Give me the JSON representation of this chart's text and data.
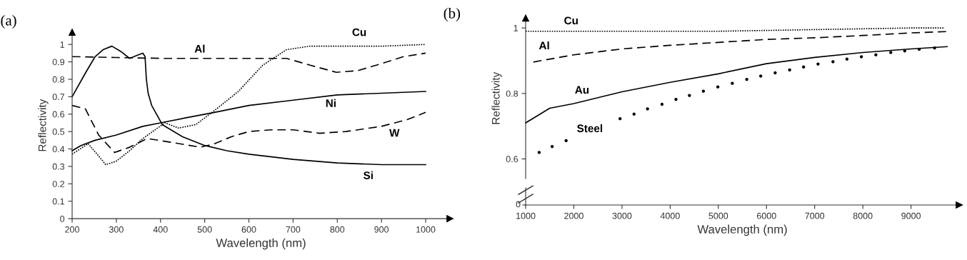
{
  "chart_data": [
    {
      "type": "line",
      "title": "(a)",
      "xlabel": "Wavelength (nm)",
      "ylabel": "Reflectivity",
      "xlim": [
        200,
        1055
      ],
      "ylim": [
        0,
        1.07
      ],
      "xticks": [
        200,
        300,
        400,
        500,
        600,
        700,
        800,
        900,
        1000
      ],
      "yticks": [
        0,
        0.1,
        0.2,
        0.3,
        0.4,
        0.5,
        0.6,
        0.7,
        0.8,
        0.9,
        1
      ],
      "series": [
        {
          "name": "Cu",
          "color": "#000000",
          "line_style": "dotted",
          "x": [
            200,
            236,
            260,
            276,
            300,
            330,
            360,
            410,
            441,
            480,
            522,
            576,
            631,
            685,
            738,
            800,
            900,
            1000
          ],
          "values": [
            0.37,
            0.43,
            0.36,
            0.31,
            0.33,
            0.39,
            0.46,
            0.55,
            0.52,
            0.54,
            0.62,
            0.73,
            0.88,
            0.97,
            0.99,
            0.99,
            0.99,
            1.0
          ]
        },
        {
          "name": "Al",
          "color": "#000000",
          "line_style": "dashed",
          "x": [
            200,
            300,
            400,
            500,
            600,
            685,
            740,
            798,
            847,
            900,
            950,
            1000
          ],
          "values": [
            0.93,
            0.925,
            0.92,
            0.92,
            0.92,
            0.92,
            0.88,
            0.84,
            0.85,
            0.89,
            0.93,
            0.95
          ]
        },
        {
          "name": "Ni",
          "color": "#000000",
          "line_style": "solid",
          "x": [
            200,
            220,
            252,
            300,
            360,
            400,
            460,
            522,
            600,
            700,
            800,
            900,
            1000
          ],
          "values": [
            0.39,
            0.42,
            0.45,
            0.48,
            0.53,
            0.55,
            0.58,
            0.61,
            0.65,
            0.68,
            0.71,
            0.72,
            0.73
          ]
        },
        {
          "name": "W",
          "color": "#000000",
          "line_style": "dashed",
          "x": [
            200,
            230,
            260,
            296,
            330,
            370,
            420,
            490,
            522,
            560,
            600,
            650,
            700,
            730,
            760,
            820,
            900,
            960,
            1000
          ],
          "values": [
            0.65,
            0.63,
            0.48,
            0.38,
            0.41,
            0.46,
            0.44,
            0.41,
            0.43,
            0.47,
            0.5,
            0.51,
            0.51,
            0.5,
            0.49,
            0.5,
            0.53,
            0.57,
            0.61
          ]
        },
        {
          "name": "Si",
          "color": "#000000",
          "line_style": "solid",
          "x": [
            200,
            231,
            252,
            270,
            290,
            310,
            330,
            350,
            360,
            365,
            368,
            372,
            380,
            404,
            450,
            500,
            550,
            600,
            700,
            800,
            900,
            1000
          ],
          "values": [
            0.7,
            0.84,
            0.93,
            0.97,
            0.99,
            0.96,
            0.92,
            0.94,
            0.95,
            0.93,
            0.8,
            0.72,
            0.65,
            0.54,
            0.47,
            0.42,
            0.39,
            0.37,
            0.34,
            0.32,
            0.31,
            0.31
          ]
        }
      ]
    },
    {
      "type": "line",
      "title": "(b)",
      "xlabel": "Wavelength (nm)",
      "ylabel": "Reflectivity",
      "xlim": [
        1000,
        10000
      ],
      "ylim": [
        0.54,
        1.03
      ],
      "xticks": [
        1000,
        2000,
        3000,
        4000,
        5000,
        6000,
        7000,
        8000,
        9000
      ],
      "yticks": [
        0.6,
        0.8,
        1
      ],
      "annotations": [
        "0"
      ],
      "series": [
        {
          "name": "Cu",
          "color": "#000000",
          "line_style": "dotted",
          "x": [
            1000,
            3000,
            5000,
            7000,
            9000,
            9700
          ],
          "values": [
            0.99,
            0.99,
            0.99,
            0.995,
            1.0,
            1.0
          ]
        },
        {
          "name": "Al",
          "color": "#000000",
          "line_style": "dashed",
          "x": [
            1160,
            2000,
            3000,
            4000,
            5000,
            6000,
            7000,
            8000,
            9000,
            9740
          ],
          "values": [
            0.896,
            0.918,
            0.936,
            0.947,
            0.956,
            0.965,
            0.97,
            0.977,
            0.985,
            0.989
          ]
        },
        {
          "name": "Au",
          "color": "#000000",
          "line_style": "solid",
          "x": [
            1000,
            1500,
            2000,
            3000,
            4000,
            5000,
            6000,
            7000,
            8000,
            9000,
            9750
          ],
          "values": [
            0.71,
            0.755,
            0.769,
            0.805,
            0.834,
            0.86,
            0.891,
            0.91,
            0.925,
            0.936,
            0.943
          ]
        },
        {
          "name": "Steel",
          "color": "#000000",
          "type": "scatter",
          "marker": "circle",
          "x": [
            1280,
            1550,
            1840,
            2960,
            3250,
            3530,
            3830,
            4120,
            4400,
            4690,
            4990,
            5290,
            5590,
            5880,
            6180,
            6480,
            6770,
            7070,
            7380,
            7670,
            7970,
            8270,
            8580,
            8870,
            9170,
            9490
          ],
          "values": [
            0.62,
            0.638,
            0.656,
            0.723,
            0.737,
            0.753,
            0.767,
            0.782,
            0.794,
            0.807,
            0.82,
            0.831,
            0.843,
            0.853,
            0.863,
            0.872,
            0.881,
            0.89,
            0.897,
            0.905,
            0.912,
            0.918,
            0.925,
            0.93,
            0.935,
            0.939
          ]
        }
      ]
    }
  ]
}
